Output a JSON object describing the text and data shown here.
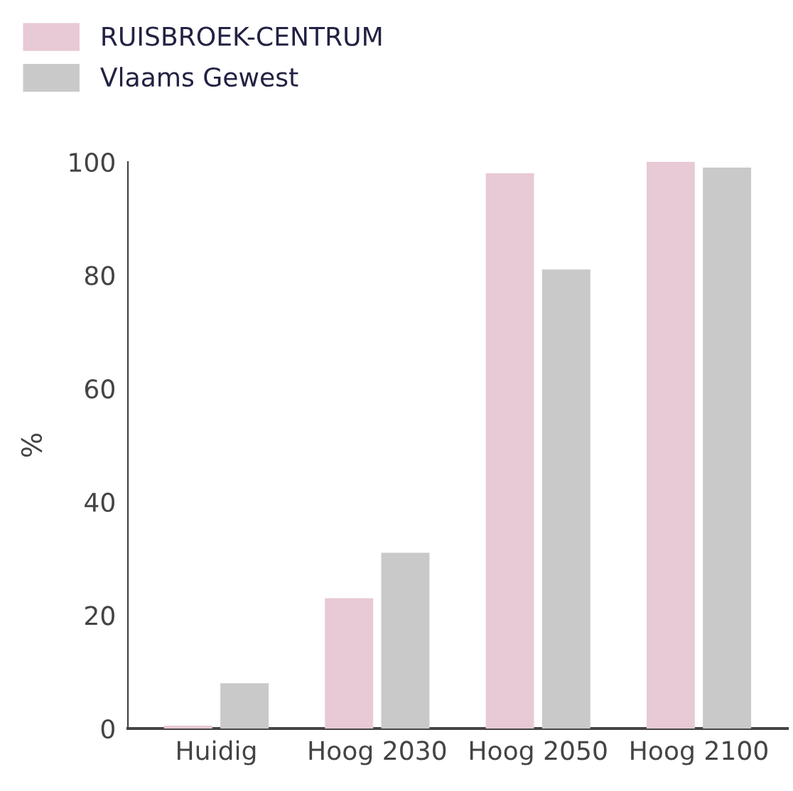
{
  "chart_data": {
    "type": "bar",
    "ylabel": "%",
    "categories": [
      "Huidig",
      "Hoog 2030",
      "Hoog 2050",
      "Hoog 2100"
    ],
    "series": [
      {
        "name": "RUISBROEK-CENTRUM",
        "color": "#e8c9d6",
        "values": [
          0.5,
          23,
          98,
          100
        ]
      },
      {
        "name": "Vlaams Gewest",
        "color": "#c9c9c9",
        "values": [
          8,
          31,
          81,
          99
        ]
      }
    ],
    "ylim": [
      0,
      100
    ],
    "yticks": [
      0,
      20,
      40,
      60,
      80,
      100
    ],
    "grid": false,
    "legend": "top left"
  }
}
